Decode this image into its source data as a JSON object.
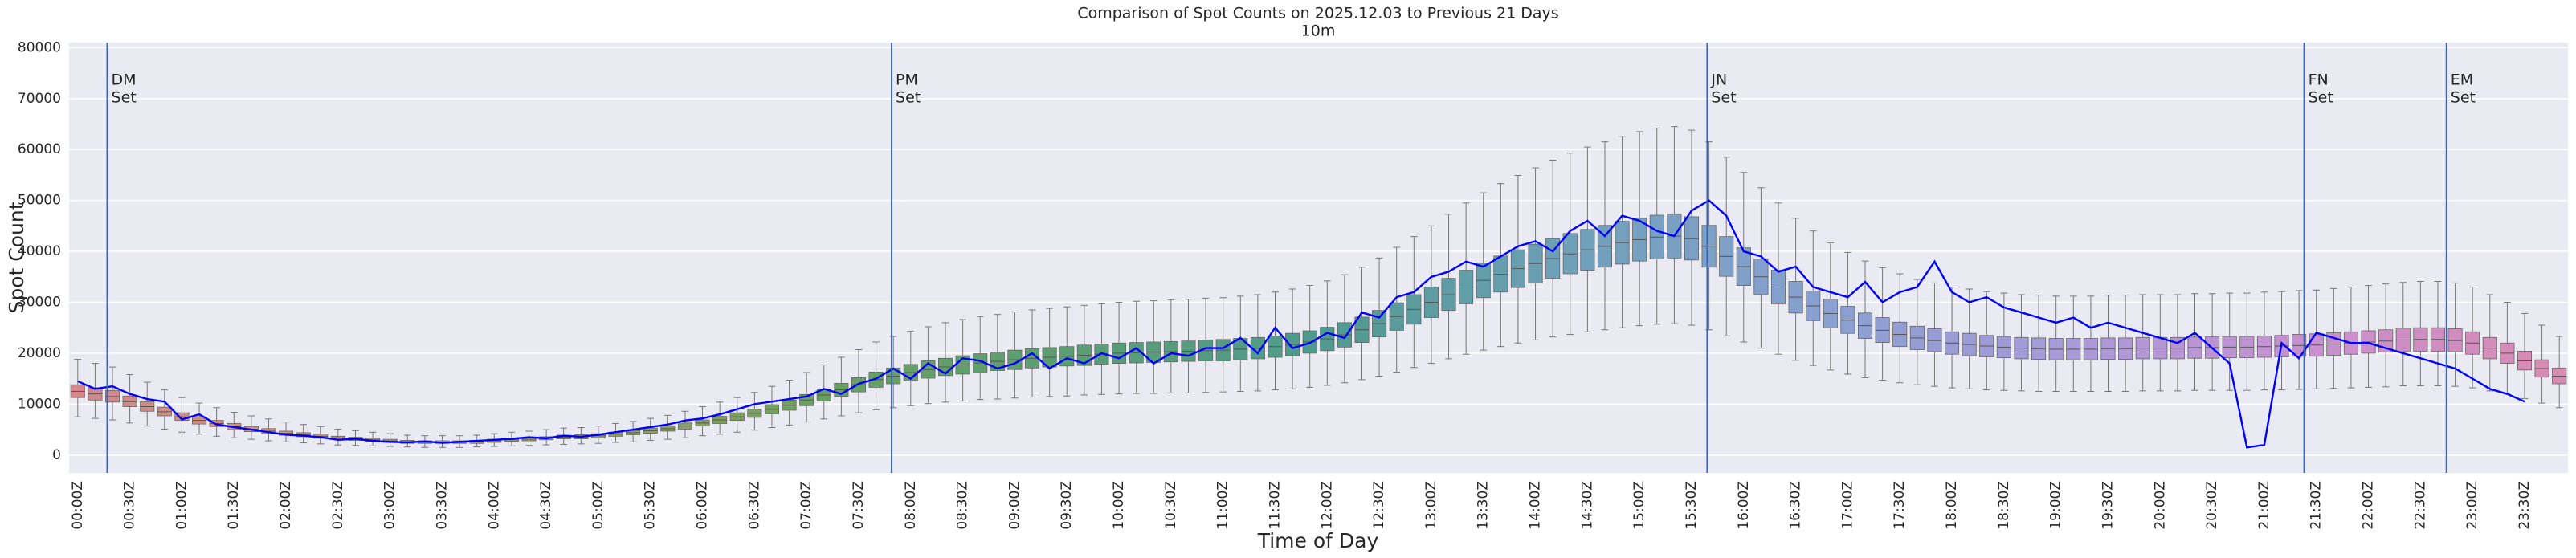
{
  "chart_data": {
    "type": "box",
    "title": "Comparison of Spot Counts on 2025.12.03 to Previous 21 Days",
    "subtitle": "10m",
    "x_label": "Time of Day",
    "y_label": "Spot Count",
    "ylim": [
      -3500,
      81000
    ],
    "yticks": [
      0,
      10000,
      20000,
      30000,
      40000,
      50000,
      60000,
      70000,
      80000
    ],
    "grid": true,
    "palette": [
      "#d4868c",
      "#c89a76",
      "#9da55a",
      "#68a060",
      "#5a9e72",
      "#4f9a8e",
      "#6ea0b8",
      "#88a0d0",
      "#a89ad8",
      "#c890d0",
      "#d88ab0"
    ],
    "categories": [
      "00:00Z",
      null,
      null,
      "00:30Z",
      null,
      null,
      "01:00Z",
      null,
      null,
      "01:30Z",
      null,
      null,
      "02:00Z",
      null,
      null,
      "02:30Z",
      null,
      null,
      "03:00Z",
      null,
      null,
      "03:30Z",
      null,
      null,
      "04:00Z",
      null,
      null,
      "04:30Z",
      null,
      null,
      "05:00Z",
      null,
      null,
      "05:30Z",
      null,
      null,
      "06:00Z",
      null,
      null,
      "06:30Z",
      null,
      null,
      "07:00Z",
      null,
      null,
      "07:30Z",
      null,
      null,
      "08:00Z",
      null,
      null,
      "08:30Z",
      null,
      null,
      "09:00Z",
      null,
      null,
      "09:30Z",
      null,
      null,
      "10:00Z",
      null,
      null,
      "10:30Z",
      null,
      null,
      "11:00Z",
      null,
      null,
      "11:30Z",
      null,
      null,
      "12:00Z",
      null,
      null,
      "12:30Z",
      null,
      null,
      "13:00Z",
      null,
      null,
      "13:30Z",
      null,
      null,
      "14:00Z",
      null,
      null,
      "14:30Z",
      null,
      null,
      "15:00Z",
      null,
      null,
      "15:30Z",
      null,
      null,
      "16:00Z",
      null,
      null,
      "16:30Z",
      null,
      null,
      "17:00Z",
      null,
      null,
      "17:30Z",
      null,
      null,
      "18:00Z",
      null,
      null,
      "18:30Z",
      null,
      null,
      "19:00Z",
      null,
      null,
      "19:30Z",
      null,
      null,
      "20:00Z",
      null,
      null,
      "20:30Z",
      null,
      null,
      "21:00Z",
      null,
      null,
      "21:30Z",
      null,
      null,
      "22:00Z",
      null,
      null,
      "22:30Z",
      null,
      null,
      "23:00Z",
      null,
      null,
      "23:30Z",
      null,
      null
    ],
    "boxes": [
      [
        7500,
        11300,
        12500,
        13800,
        18800
      ],
      [
        7200,
        10800,
        12000,
        13200,
        18000
      ],
      [
        6900,
        10400,
        11500,
        12700,
        17300
      ],
      [
        6300,
        9500,
        10500,
        11600,
        15800
      ],
      [
        5700,
        8600,
        9500,
        10500,
        14300
      ],
      [
        5100,
        7700,
        8500,
        9400,
        12800
      ],
      [
        4500,
        6800,
        7500,
        8300,
        11300
      ],
      [
        4100,
        6100,
        6800,
        7500,
        10200
      ],
      [
        3700,
        5600,
        6200,
        6800,
        9300
      ],
      [
        3400,
        5000,
        5600,
        6200,
        8400
      ],
      [
        3100,
        4600,
        5100,
        5600,
        7700
      ],
      [
        2800,
        4200,
        4700,
        5200,
        7100
      ],
      [
        2600,
        3900,
        4300,
        4700,
        6500
      ],
      [
        2400,
        3600,
        4000,
        4400,
        6000
      ],
      [
        2200,
        3300,
        3700,
        4100,
        5600
      ],
      [
        2000,
        3100,
        3400,
        3700,
        5100
      ],
      [
        1900,
        2900,
        3200,
        3500,
        4800
      ],
      [
        1800,
        2700,
        3000,
        3300,
        4500
      ],
      [
        1700,
        2500,
        2800,
        3100,
        4200
      ],
      [
        1600,
        2300,
        2600,
        2900,
        3900
      ],
      [
        1500,
        2300,
        2500,
        2800,
        3800
      ],
      [
        1500,
        2300,
        2500,
        2800,
        3800
      ],
      [
        1500,
        2300,
        2500,
        2800,
        3800
      ],
      [
        1600,
        2300,
        2600,
        2900,
        3900
      ],
      [
        1700,
        2500,
        2800,
        3100,
        4200
      ],
      [
        1800,
        2700,
        3000,
        3300,
        4500
      ],
      [
        1900,
        2800,
        3100,
        3400,
        4700
      ],
      [
        2000,
        3000,
        3300,
        3600,
        5000
      ],
      [
        2100,
        3200,
        3500,
        3900,
        5300
      ],
      [
        2200,
        3200,
        3600,
        4000,
        5400
      ],
      [
        2300,
        3400,
        3800,
        4200,
        5700
      ],
      [
        2500,
        3700,
        4100,
        4500,
        6200
      ],
      [
        2600,
        4000,
        4400,
        4800,
        6600
      ],
      [
        2900,
        4300,
        4800,
        5300,
        7200
      ],
      [
        3100,
        4700,
        5200,
        5700,
        7800
      ],
      [
        3400,
        5100,
        5700,
        6300,
        8600
      ],
      [
        3800,
        5700,
        6300,
        6900,
        9500
      ],
      [
        4100,
        6200,
        6900,
        7600,
        10400
      ],
      [
        4500,
        6800,
        7500,
        8300,
        11300
      ],
      [
        4900,
        7400,
        8200,
        9000,
        12300
      ],
      [
        5400,
        8100,
        9000,
        9900,
        13500
      ],
      [
        5900,
        8800,
        9800,
        10800,
        14700
      ],
      [
        6500,
        9700,
        10800,
        11900,
        16200
      ],
      [
        7100,
        10600,
        11800,
        13000,
        17700
      ],
      [
        7700,
        11500,
        12800,
        14100,
        19200
      ],
      [
        8300,
        12400,
        13800,
        15200,
        20700
      ],
      [
        8900,
        13300,
        14800,
        16300,
        22200
      ],
      [
        9300,
        14000,
        15500,
        17100,
        23300
      ],
      [
        9700,
        14600,
        16200,
        17800,
        24300
      ],
      [
        10100,
        15100,
        16800,
        18500,
        25200
      ],
      [
        10400,
        15600,
        17300,
        19000,
        26000
      ],
      [
        10600,
        15900,
        17700,
        19500,
        26600
      ],
      [
        10900,
        16300,
        18100,
        19900,
        27200
      ],
      [
        11000,
        16600,
        18400,
        20200,
        27600
      ],
      [
        11200,
        16800,
        18700,
        20600,
        28100
      ],
      [
        11400,
        17100,
        19000,
        20900,
        28500
      ],
      [
        11500,
        17300,
        19200,
        21100,
        28800
      ],
      [
        11600,
        17500,
        19400,
        21300,
        29100
      ],
      [
        11800,
        17600,
        19600,
        21600,
        29400
      ],
      [
        11900,
        17800,
        19800,
        21800,
        29700
      ],
      [
        12000,
        18000,
        20000,
        22000,
        30000
      ],
      [
        12100,
        18100,
        20100,
        22100,
        30200
      ],
      [
        12100,
        18200,
        20200,
        22200,
        30300
      ],
      [
        12200,
        18300,
        20300,
        22300,
        30500
      ],
      [
        12200,
        18400,
        20400,
        22400,
        30600
      ],
      [
        12300,
        18500,
        20500,
        22600,
        30800
      ],
      [
        12400,
        18500,
        20600,
        22700,
        30900
      ],
      [
        12500,
        18700,
        20800,
        22900,
        31200
      ],
      [
        12600,
        18900,
        21000,
        23100,
        31500
      ],
      [
        12800,
        19200,
        21300,
        23400,
        32000
      ],
      [
        13000,
        19500,
        21700,
        23900,
        32600
      ],
      [
        13300,
        20000,
        22200,
        24400,
        33300
      ],
      [
        13700,
        20500,
        22800,
        25100,
        34200
      ],
      [
        14200,
        21200,
        23600,
        26000,
        35400
      ],
      [
        14800,
        22100,
        24600,
        27100,
        36900
      ],
      [
        15500,
        23200,
        25800,
        28400,
        38700
      ],
      [
        16300,
        24500,
        27200,
        29900,
        40800
      ],
      [
        17200,
        25700,
        28600,
        31500,
        42900
      ],
      [
        18000,
        27000,
        30000,
        33000,
        45000
      ],
      [
        18900,
        28400,
        31500,
        34700,
        47300
      ],
      [
        19800,
        29700,
        33000,
        36300,
        49500
      ],
      [
        20600,
        30900,
        34300,
        37700,
        51500
      ],
      [
        21300,
        32000,
        35500,
        39100,
        53300
      ],
      [
        22000,
        32900,
        36600,
        40300,
        54900
      ],
      [
        22600,
        33800,
        37600,
        41400,
        56400
      ],
      [
        23200,
        34700,
        38600,
        42500,
        57900
      ],
      [
        23700,
        35600,
        39500,
        43500,
        59300
      ],
      [
        24200,
        36300,
        40300,
        44300,
        60500
      ],
      [
        24600,
        36900,
        41000,
        45100,
        61500
      ],
      [
        25000,
        37500,
        41700,
        45900,
        62600
      ],
      [
        25400,
        38100,
        42300,
        46500,
        63500
      ],
      [
        25700,
        38500,
        42800,
        47100,
        64200
      ],
      [
        25800,
        38700,
        43000,
        47300,
        64500
      ],
      [
        25500,
        38300,
        42500,
        46800,
        63800
      ],
      [
        24600,
        36900,
        41000,
        45100,
        61500
      ],
      [
        23400,
        35100,
        39000,
        42900,
        58500
      ],
      [
        22200,
        33300,
        37000,
        40700,
        55500
      ],
      [
        21000,
        31500,
        35000,
        38500,
        52500
      ],
      [
        19800,
        29700,
        33000,
        36300,
        49500
      ],
      [
        18600,
        27900,
        31000,
        34100,
        46500
      ],
      [
        17600,
        26400,
        29300,
        32200,
        44000
      ],
      [
        16700,
        25000,
        27800,
        30600,
        41700
      ],
      [
        15900,
        23900,
        26500,
        29200,
        39800
      ],
      [
        15200,
        22900,
        25400,
        27900,
        38100
      ],
      [
        14700,
        22100,
        24500,
        27000,
        36800
      ],
      [
        14200,
        21300,
        23700,
        26100,
        35600
      ],
      [
        13800,
        20700,
        23000,
        25300,
        34500
      ],
      [
        13500,
        20300,
        22500,
        24800,
        33800
      ],
      [
        13200,
        19800,
        22000,
        24200,
        33000
      ],
      [
        13000,
        19500,
        21700,
        23900,
        32600
      ],
      [
        12800,
        19300,
        21400,
        23500,
        32100
      ],
      [
        12700,
        19100,
        21200,
        23300,
        31800
      ],
      [
        12600,
        18900,
        21000,
        23100,
        31500
      ],
      [
        12500,
        18800,
        20900,
        23000,
        31400
      ],
      [
        12500,
        18700,
        20800,
        22900,
        31200
      ],
      [
        12500,
        18700,
        20800,
        22900,
        31200
      ],
      [
        12500,
        18700,
        20800,
        22900,
        31200
      ],
      [
        12500,
        18800,
        20900,
        23000,
        31400
      ],
      [
        12500,
        18800,
        20900,
        23000,
        31400
      ],
      [
        12600,
        18900,
        21000,
        23100,
        31500
      ],
      [
        12600,
        18900,
        21000,
        23100,
        31500
      ],
      [
        12600,
        18900,
        21000,
        23100,
        31500
      ],
      [
        12700,
        19000,
        21100,
        23200,
        31700
      ],
      [
        12700,
        19000,
        21100,
        23200,
        31700
      ],
      [
        12700,
        19100,
        21200,
        23300,
        31800
      ],
      [
        12700,
        19100,
        21200,
        23300,
        31800
      ],
      [
        12800,
        19200,
        21300,
        23400,
        32000
      ],
      [
        12800,
        19300,
        21400,
        23500,
        32100
      ],
      [
        12900,
        19400,
        21500,
        23700,
        32300
      ],
      [
        13000,
        19400,
        21600,
        23800,
        32400
      ],
      [
        13100,
        19600,
        21800,
        24000,
        32700
      ],
      [
        13200,
        19800,
        22000,
        24200,
        33000
      ],
      [
        13300,
        20000,
        22200,
        24400,
        33300
      ],
      [
        13400,
        20200,
        22400,
        24600,
        33600
      ],
      [
        13600,
        20300,
        22600,
        24900,
        33900
      ],
      [
        13600,
        20400,
        22700,
        25000,
        34100
      ],
      [
        13600,
        20400,
        22700,
        25000,
        34100
      ],
      [
        13500,
        20300,
        22500,
        24800,
        33800
      ],
      [
        13200,
        19800,
        22000,
        24200,
        33000
      ],
      [
        12600,
        18900,
        21000,
        23100,
        31500
      ],
      [
        12000,
        18000,
        20000,
        22000,
        30000
      ],
      [
        11100,
        16700,
        18500,
        20400,
        27800
      ],
      [
        10200,
        15300,
        17000,
        18700,
        25500
      ],
      [
        9300,
        14000,
        15500,
        17100,
        23300
      ]
    ],
    "line": {
      "color": "#0000ff",
      "values": [
        14500,
        13000,
        13500,
        12000,
        11000,
        10500,
        7000,
        8000,
        6000,
        5500,
        5000,
        4500,
        4000,
        3800,
        3500,
        3000,
        3200,
        2800,
        2600,
        2500,
        2700,
        2400,
        2600,
        2800,
        3000,
        3200,
        3500,
        3300,
        3800,
        3600,
        4000,
        4500,
        5000,
        5500,
        6000,
        6800,
        7200,
        8000,
        9000,
        10000,
        10500,
        11000,
        11500,
        13000,
        12000,
        14000,
        15000,
        17000,
        15000,
        18000,
        16000,
        19000,
        18500,
        17000,
        18000,
        20000,
        17000,
        19000,
        18000,
        20000,
        19000,
        21000,
        18000,
        20000,
        19500,
        21000,
        21000,
        23000,
        20000,
        25000,
        21000,
        22000,
        24000,
        23000,
        28000,
        27000,
        31000,
        32000,
        35000,
        36000,
        38000,
        37000,
        39000,
        41000,
        42000,
        40000,
        44000,
        46000,
        43000,
        47000,
        46000,
        44000,
        43000,
        48000,
        50000,
        47000,
        40000,
        39000,
        36000,
        37000,
        33000,
        32000,
        31000,
        34000,
        30000,
        32000,
        33000,
        38000,
        32000,
        30000,
        31000,
        29000,
        28000,
        27000,
        26000,
        27000,
        25000,
        26000,
        25000,
        24000,
        23000,
        22000,
        24000,
        21000,
        18000,
        1500,
        2000,
        22000,
        19000,
        24000,
        23000,
        22000,
        22000,
        21000,
        20000,
        19000,
        18000,
        17000,
        15000,
        13000,
        12000,
        10500,
        null,
        null
      ]
    },
    "annotations": [
      {
        "text": [
          "DM",
          "Set"
        ],
        "x": 1.7,
        "color": "#3a66b8"
      },
      {
        "text": [
          "PM",
          "Set"
        ],
        "x": 46.9,
        "color": "#3a66b8"
      },
      {
        "text": [
          "JN",
          "Set"
        ],
        "x": 93.9,
        "color": "#3a66b8"
      },
      {
        "text": [
          "FN",
          "Set"
        ],
        "x": 128.3,
        "color": "#3a66b8"
      },
      {
        "text": [
          "EM",
          "Set"
        ],
        "x": 136.5,
        "color": "#3a66b8"
      }
    ]
  }
}
